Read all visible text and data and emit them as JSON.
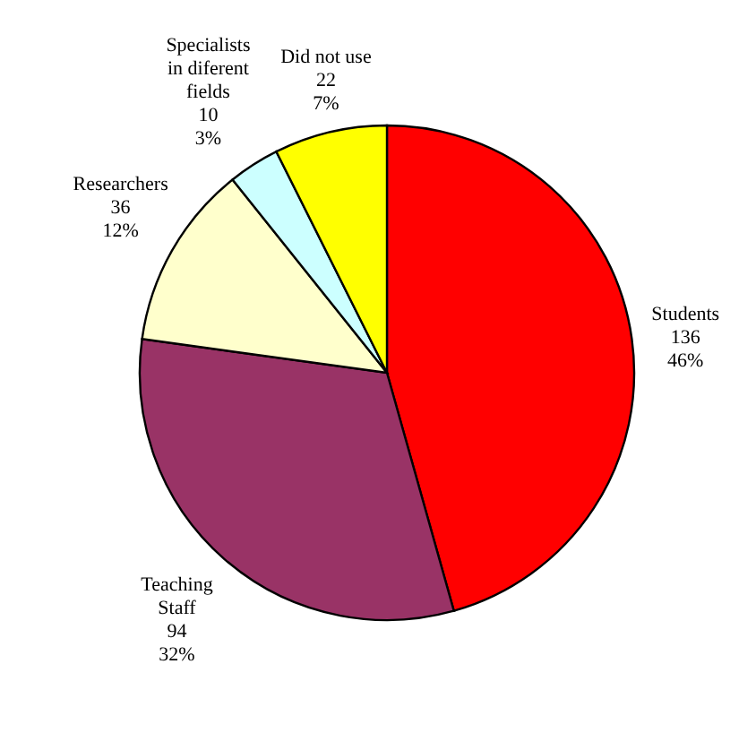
{
  "chart_data": {
    "type": "pie",
    "categories": [
      "Students",
      "Teaching Staff",
      "Researchers",
      "Specialists in diferent fields",
      "Did not use"
    ],
    "values": [
      136,
      94,
      36,
      10,
      22
    ],
    "colors": [
      "#ff0000",
      "#993366",
      "#ffffcc",
      "#ccffff",
      "#ffff00"
    ],
    "value_labels": [
      "136\n46%",
      "94\n32%",
      "36\n12%",
      "10\n3%",
      "22\n7%"
    ]
  }
}
